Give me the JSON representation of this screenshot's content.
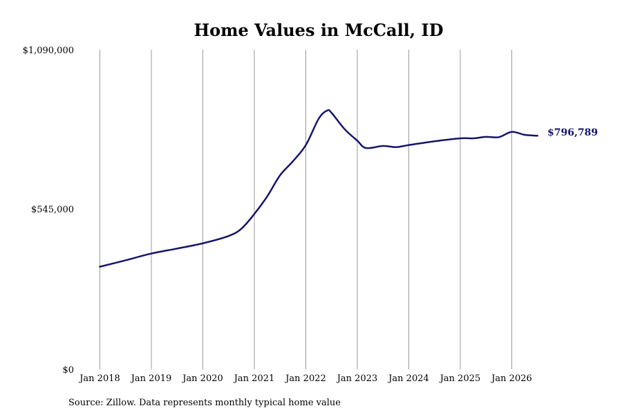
{
  "chart_data": {
    "type": "line",
    "title": "Home Values in McCall, ID",
    "source": "Source: Zillow. Data represents monthly typical home value",
    "ylim": [
      0,
      1090000
    ],
    "y_ticks": [
      0,
      545000,
      1090000
    ],
    "y_tick_labels": [
      "$0",
      "$545,000",
      "$1,090,000"
    ],
    "x_ticks": [
      "2018-01",
      "2019-01",
      "2020-01",
      "2021-01",
      "2022-01",
      "2023-01",
      "2024-01",
      "2025-01",
      "2026-01"
    ],
    "x_tick_labels": [
      "Jan 2018",
      "Jan 2019",
      "Jan 2020",
      "Jan 2021",
      "Jan 2022",
      "Jan 2023",
      "Jan 2024",
      "Jan 2025",
      "Jan 2026"
    ],
    "x_grid": true,
    "y_grid": false,
    "line_color": "#14146b",
    "end_label": "$796,789",
    "series": [
      {
        "x": [
          "2018-01",
          "2018-07",
          "2019-01",
          "2019-07",
          "2020-01",
          "2020-07",
          "2020-10",
          "2021-01",
          "2021-04",
          "2021-07",
          "2021-10",
          "2022-01",
          "2022-04",
          "2022-06",
          "2022-07",
          "2022-10",
          "2023-01",
          "2023-03",
          "2023-07",
          "2023-10",
          "2024-01",
          "2024-07",
          "2025-01",
          "2025-04",
          "2025-07",
          "2025-10",
          "2026-01",
          "2026-04",
          "2026-07"
        ],
        "y": [
          350000,
          372000,
          395000,
          412000,
          430000,
          455000,
          480000,
          530000,
          590000,
          662000,
          710000,
          765000,
          855000,
          883000,
          875000,
          820000,
          780000,
          755000,
          762000,
          758000,
          765000,
          778000,
          788000,
          788000,
          793000,
          792000,
          810000,
          800000,
          796789
        ]
      }
    ]
  }
}
